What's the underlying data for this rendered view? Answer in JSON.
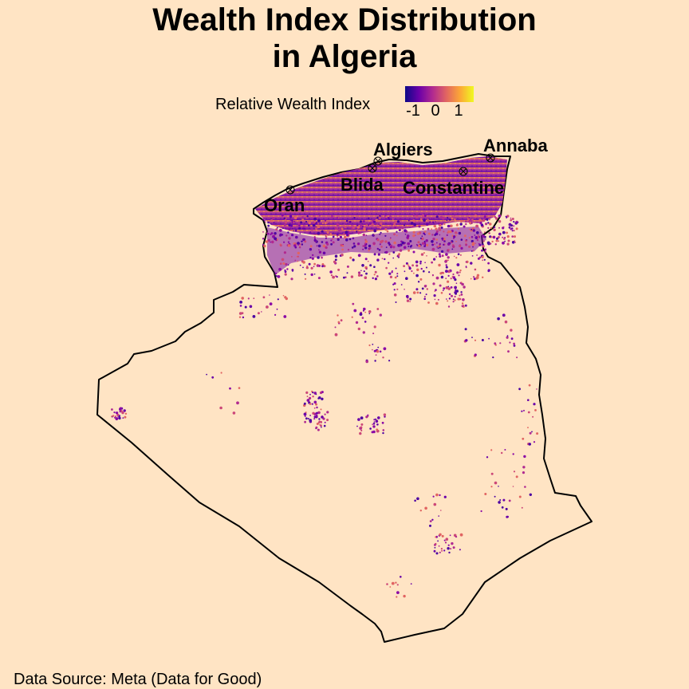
{
  "title_line1": "Wealth Index Distribution",
  "title_line2": "in Algeria",
  "legend": {
    "label": "Relative Wealth Index",
    "ticks": [
      "-1",
      "0",
      "1"
    ],
    "gradient_colors": [
      "#0d0887",
      "#6a00a8",
      "#b12a90",
      "#e16462",
      "#fca636",
      "#f0f921"
    ]
  },
  "source": "Data Source: Meta (Data for Good)",
  "cities": [
    {
      "name": "Algiers",
      "label": "Algiers"
    },
    {
      "name": "Annaba",
      "label": "Annaba"
    },
    {
      "name": "Blida",
      "label": "Blida"
    },
    {
      "name": "Constantine",
      "label": "Constantine"
    },
    {
      "name": "Oran",
      "label": "Oran"
    }
  ],
  "colors": {
    "background": "#ffe4c4",
    "border": "#000000"
  }
}
